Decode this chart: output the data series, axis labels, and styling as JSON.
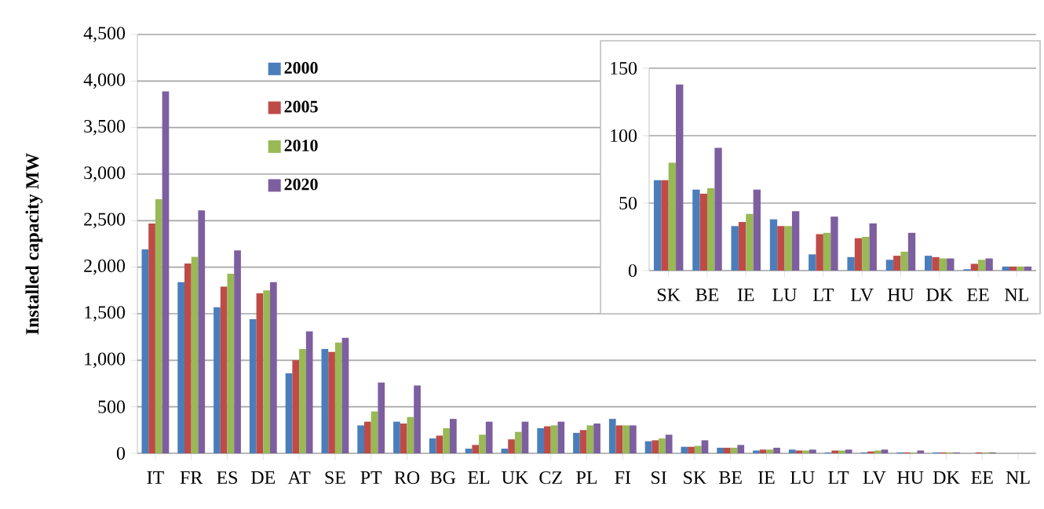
{
  "chart_data": [
    {
      "type": "bar",
      "ylabel": "Installed capacity MW",
      "categories": [
        "IT",
        "FR",
        "ES",
        "DE",
        "AT",
        "SE",
        "PT",
        "RO",
        "BG",
        "EL",
        "UK",
        "CZ",
        "PL",
        "FI",
        "SI",
        "SK",
        "BE",
        "IE",
        "LU",
        "LT",
        "LV",
        "HU",
        "DK",
        "EE",
        "NL"
      ],
      "series": [
        {
          "name": "2000",
          "color": "#4a7ebb",
          "values": [
            2190,
            1840,
            1570,
            1440,
            860,
            1120,
            300,
            340,
            160,
            50,
            50,
            270,
            220,
            370,
            130,
            70,
            60,
            30,
            40,
            10,
            10,
            10,
            10,
            0,
            0
          ]
        },
        {
          "name": "2005",
          "color": "#be4b48",
          "values": [
            2470,
            2040,
            1790,
            1720,
            1000,
            1090,
            340,
            320,
            190,
            90,
            150,
            290,
            250,
            300,
            140,
            70,
            60,
            40,
            30,
            30,
            20,
            10,
            10,
            10,
            0
          ]
        },
        {
          "name": "2010",
          "color": "#98b954",
          "values": [
            2730,
            2110,
            1930,
            1750,
            1120,
            1190,
            450,
            390,
            270,
            200,
            230,
            300,
            300,
            300,
            160,
            80,
            60,
            40,
            30,
            30,
            30,
            10,
            10,
            10,
            0
          ]
        },
        {
          "name": "2020",
          "color": "#7d5fa0",
          "values": [
            3890,
            2610,
            2180,
            1840,
            1310,
            1240,
            760,
            730,
            370,
            340,
            340,
            340,
            320,
            300,
            200,
            140,
            90,
            60,
            40,
            40,
            40,
            30,
            10,
            10,
            0
          ]
        }
      ],
      "ylim": [
        0,
        4500
      ],
      "yticks": [
        {
          "value": 0,
          "label": "0"
        },
        {
          "value": 500,
          "label": "500"
        },
        {
          "value": 1000,
          "label": "1,000"
        },
        {
          "value": 1500,
          "label": "1,500"
        },
        {
          "value": 2000,
          "label": "2,000"
        },
        {
          "value": 2500,
          "label": "2,500"
        },
        {
          "value": 3000,
          "label": "3,000"
        },
        {
          "value": 3500,
          "label": "3,500"
        },
        {
          "value": 4000,
          "label": "4,000"
        },
        {
          "value": 4500,
          "label": "4,500"
        }
      ],
      "grid": "y",
      "legend": "top left"
    },
    {
      "type": "bar",
      "categories": [
        "SK",
        "BE",
        "IE",
        "LU",
        "LT",
        "LV",
        "HU",
        "DK",
        "EE",
        "NL"
      ],
      "series": [
        {
          "color": "#4a7ebb",
          "values": [
            67,
            60,
            33,
            38,
            12,
            10,
            8,
            11,
            1,
            3
          ]
        },
        {
          "color": "#be4b48",
          "values": [
            67,
            57,
            36,
            33,
            27,
            24,
            11,
            10,
            5,
            3
          ]
        },
        {
          "color": "#98b954",
          "values": [
            80,
            61,
            42,
            33,
            28,
            25,
            14,
            9,
            8,
            3
          ]
        },
        {
          "color": "#7d5fa0",
          "values": [
            138,
            91,
            60,
            44,
            40,
            35,
            28,
            9,
            9,
            3
          ]
        }
      ],
      "ylim": [
        0,
        150
      ],
      "yticks": [
        0,
        50,
        100,
        150
      ],
      "grid": "y"
    }
  ]
}
